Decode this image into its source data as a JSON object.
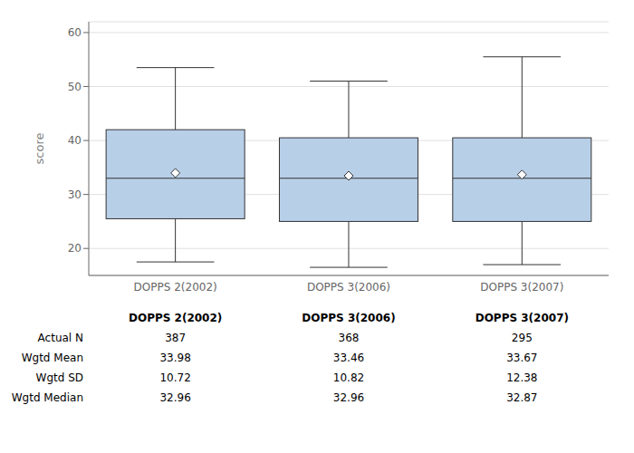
{
  "chart_data": {
    "type": "box",
    "categories": [
      "DOPPS 2(2002)",
      "DOPPS 3(2006)",
      "DOPPS 3(2007)"
    ],
    "boxes": [
      {
        "q1": 25.5,
        "median": 33.0,
        "q3": 42.0,
        "whisker_low": 17.5,
        "whisker_high": 53.5,
        "mean": 33.98
      },
      {
        "q1": 25.0,
        "median": 33.0,
        "q3": 40.5,
        "whisker_low": 16.5,
        "whisker_high": 51.0,
        "mean": 33.46
      },
      {
        "q1": 25.0,
        "median": 33.0,
        "q3": 40.5,
        "whisker_low": 17.0,
        "whisker_high": 55.5,
        "mean": 33.67
      }
    ],
    "table": {
      "header": [
        "DOPPS 2(2002)",
        "DOPPS 3(2006)",
        "DOPPS 3(2007)"
      ],
      "rows": [
        "Actual N",
        "Wgtd Mean",
        "Wgtd SD",
        "Wgtd Median"
      ],
      "values": [
        [
          "387",
          "368",
          "295"
        ],
        [
          "33.98",
          "33.46",
          "33.67"
        ],
        [
          "10.72",
          "10.82",
          "12.38"
        ],
        [
          "32.96",
          "32.96",
          "32.87"
        ]
      ]
    },
    "ylabel": "score",
    "ylim": [
      15,
      62
    ],
    "yticks": [
      20,
      30,
      40,
      50,
      60
    ],
    "color": "#b8cfe8",
    "grid": true
  }
}
